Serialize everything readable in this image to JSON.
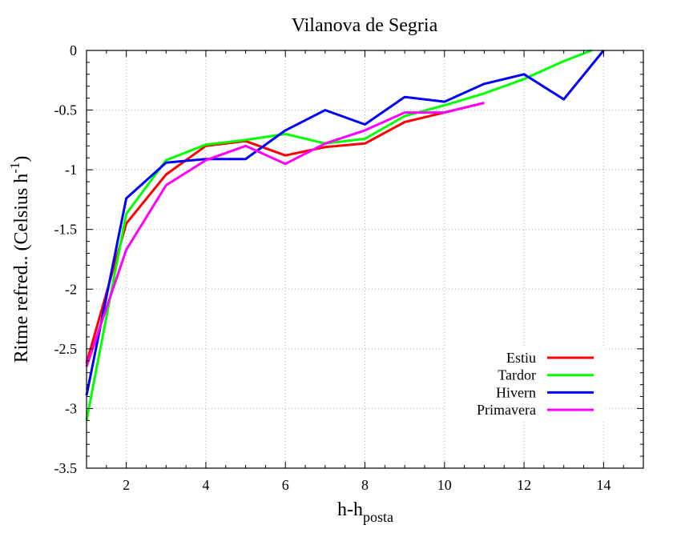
{
  "chart_data": {
    "type": "line",
    "title": "Vilanova de Segria",
    "xlabel": {
      "main": "h-h",
      "sub": "posta"
    },
    "ylabel": {
      "main": "Ritme refred.. (Celsius h",
      "sup": "-1",
      "end": ")"
    },
    "xlim": [
      1,
      15
    ],
    "ylim": [
      -3.5,
      0
    ],
    "xticks": [
      2,
      4,
      6,
      8,
      10,
      12,
      14
    ],
    "xtick_labels": [
      "2",
      "4",
      "6",
      "8",
      "10",
      "12",
      "14"
    ],
    "yticks": [
      0,
      -0.5,
      -1,
      -1.5,
      -2,
      -2.5,
      -3,
      -3.5
    ],
    "ytick_labels": [
      "0",
      "-0.5",
      "-1",
      "-1.5",
      "-2",
      "-2.5",
      "-3",
      "-3.5"
    ],
    "grid": true,
    "legend_position": "bottom-right",
    "series": [
      {
        "name": "Estiu",
        "color": "#ff0000",
        "points": [
          [
            1,
            -2.62
          ],
          [
            2,
            -1.45
          ],
          [
            3,
            -1.04
          ],
          [
            4,
            -0.8
          ],
          [
            5,
            -0.76
          ],
          [
            6,
            -0.88
          ],
          [
            7,
            -0.81
          ],
          [
            8,
            -0.78
          ],
          [
            9,
            -0.6
          ],
          [
            10,
            -0.52
          ],
          [
            11,
            -0.44
          ]
        ]
      },
      {
        "name": "Tardor",
        "color": "#00ff00",
        "points": [
          [
            1,
            -3.1
          ],
          [
            2,
            -1.37
          ],
          [
            3,
            -0.92
          ],
          [
            4,
            -0.79
          ],
          [
            5,
            -0.75
          ],
          [
            6,
            -0.7
          ],
          [
            7,
            -0.78
          ],
          [
            8,
            -0.74
          ],
          [
            9,
            -0.55
          ],
          [
            10,
            -0.46
          ],
          [
            11,
            -0.36
          ],
          [
            12,
            -0.24
          ],
          [
            13,
            -0.09
          ],
          [
            13.7,
            0
          ]
        ]
      },
      {
        "name": "Hivern",
        "color": "#0000ff",
        "points": [
          [
            1,
            -2.89
          ],
          [
            2,
            -1.24
          ],
          [
            3,
            -0.94
          ],
          [
            4,
            -0.91
          ],
          [
            5,
            -0.91
          ],
          [
            6,
            -0.67
          ],
          [
            7,
            -0.5
          ],
          [
            8,
            -0.62
          ],
          [
            9,
            -0.39
          ],
          [
            10,
            -0.43
          ],
          [
            11,
            -0.28
          ],
          [
            12,
            -0.2
          ],
          [
            13,
            -0.41
          ],
          [
            14,
            0
          ]
        ]
      },
      {
        "name": "Primavera",
        "color": "#ff00ff",
        "points": [
          [
            1,
            -2.65
          ],
          [
            2,
            -1.67
          ],
          [
            3,
            -1.13
          ],
          [
            4,
            -0.92
          ],
          [
            5,
            -0.8
          ],
          [
            6,
            -0.95
          ],
          [
            7,
            -0.78
          ],
          [
            8,
            -0.67
          ],
          [
            9,
            -0.52
          ],
          [
            10,
            -0.52
          ],
          [
            11,
            -0.44
          ]
        ]
      }
    ]
  }
}
